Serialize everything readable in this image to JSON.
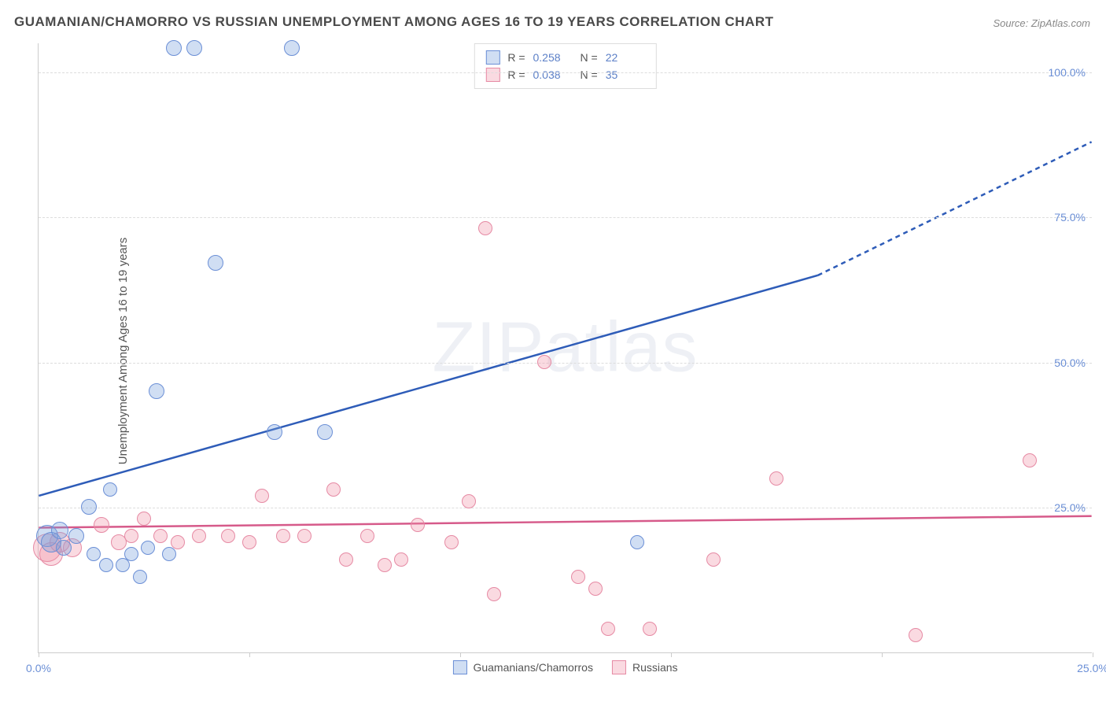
{
  "title": "GUAMANIAN/CHAMORRO VS RUSSIAN UNEMPLOYMENT AMONG AGES 16 TO 19 YEARS CORRELATION CHART",
  "source": "Source: ZipAtlas.com",
  "y_axis_label": "Unemployment Among Ages 16 to 19 years",
  "watermark": "ZIPatlas",
  "chart": {
    "type": "scatter",
    "xlim": [
      0,
      25
    ],
    "ylim": [
      0,
      105
    ],
    "x_ticks": [
      0,
      5,
      10,
      15,
      20,
      25
    ],
    "x_tick_labels": {
      "0": "0.0%",
      "25": "25.0%"
    },
    "y_ticks": [
      25,
      50,
      75,
      100
    ],
    "y_tick_labels": {
      "25": "25.0%",
      "50": "50.0%",
      "75": "75.0%",
      "100": "100.0%"
    },
    "background_color": "#ffffff",
    "grid_color": "#dddddd",
    "axis_color": "#cccccc",
    "tick_label_color": "#6b8fd6",
    "title_color": "#4a4a4a",
    "title_fontsize": 17
  },
  "series": [
    {
      "name": "Guamanians/Chamorros",
      "color_fill": "rgba(120,160,220,0.35)",
      "color_stroke": "#6b8fd6",
      "R": "0.258",
      "N": "22",
      "trend": {
        "x1": 0,
        "y1": 27,
        "x2": 18.5,
        "y2": 65,
        "x2_ext": 25,
        "y2_ext": 88,
        "color": "#2e5cb8",
        "width": 2.5
      },
      "points": [
        {
          "x": 0.2,
          "y": 20,
          "r": 14
        },
        {
          "x": 0.3,
          "y": 19,
          "r": 13
        },
        {
          "x": 0.5,
          "y": 21,
          "r": 11
        },
        {
          "x": 0.6,
          "y": 18,
          "r": 10
        },
        {
          "x": 0.9,
          "y": 20,
          "r": 10
        },
        {
          "x": 1.2,
          "y": 25,
          "r": 10
        },
        {
          "x": 1.3,
          "y": 17,
          "r": 9
        },
        {
          "x": 1.6,
          "y": 15,
          "r": 9
        },
        {
          "x": 1.7,
          "y": 28,
          "r": 9
        },
        {
          "x": 2.0,
          "y": 15,
          "r": 9
        },
        {
          "x": 2.2,
          "y": 17,
          "r": 9
        },
        {
          "x": 2.4,
          "y": 13,
          "r": 9
        },
        {
          "x": 2.6,
          "y": 18,
          "r": 9
        },
        {
          "x": 2.8,
          "y": 45,
          "r": 10
        },
        {
          "x": 3.1,
          "y": 17,
          "r": 9
        },
        {
          "x": 3.2,
          "y": 104,
          "r": 10
        },
        {
          "x": 3.7,
          "y": 104,
          "r": 10
        },
        {
          "x": 4.2,
          "y": 67,
          "r": 10
        },
        {
          "x": 5.6,
          "y": 38,
          "r": 10
        },
        {
          "x": 6.0,
          "y": 104,
          "r": 10
        },
        {
          "x": 6.8,
          "y": 38,
          "r": 10
        },
        {
          "x": 14.2,
          "y": 19,
          "r": 9
        }
      ]
    },
    {
      "name": "Russians",
      "color_fill": "rgba(240,150,170,0.35)",
      "color_stroke": "#e68aa4",
      "R": "0.038",
      "N": "35",
      "trend": {
        "x1": 0,
        "y1": 21.5,
        "x2": 25,
        "y2": 23.5,
        "color": "#d65a8a",
        "width": 2.5
      },
      "points": [
        {
          "x": 0.2,
          "y": 18,
          "r": 18
        },
        {
          "x": 0.3,
          "y": 17,
          "r": 15
        },
        {
          "x": 0.5,
          "y": 19,
          "r": 13
        },
        {
          "x": 0.8,
          "y": 18,
          "r": 12
        },
        {
          "x": 1.5,
          "y": 22,
          "r": 10
        },
        {
          "x": 1.9,
          "y": 19,
          "r": 10
        },
        {
          "x": 2.2,
          "y": 20,
          "r": 9
        },
        {
          "x": 2.5,
          "y": 23,
          "r": 9
        },
        {
          "x": 2.9,
          "y": 20,
          "r": 9
        },
        {
          "x": 3.3,
          "y": 19,
          "r": 9
        },
        {
          "x": 3.8,
          "y": 20,
          "r": 9
        },
        {
          "x": 4.5,
          "y": 20,
          "r": 9
        },
        {
          "x": 5.0,
          "y": 19,
          "r": 9
        },
        {
          "x": 5.3,
          "y": 27,
          "r": 9
        },
        {
          "x": 5.8,
          "y": 20,
          "r": 9
        },
        {
          "x": 6.3,
          "y": 20,
          "r": 9
        },
        {
          "x": 7.0,
          "y": 28,
          "r": 9
        },
        {
          "x": 7.3,
          "y": 16,
          "r": 9
        },
        {
          "x": 7.8,
          "y": 20,
          "r": 9
        },
        {
          "x": 8.2,
          "y": 15,
          "r": 9
        },
        {
          "x": 8.6,
          "y": 16,
          "r": 9
        },
        {
          "x": 9.0,
          "y": 22,
          "r": 9
        },
        {
          "x": 9.8,
          "y": 19,
          "r": 9
        },
        {
          "x": 10.2,
          "y": 26,
          "r": 9
        },
        {
          "x": 10.6,
          "y": 73,
          "r": 9
        },
        {
          "x": 10.8,
          "y": 10,
          "r": 9
        },
        {
          "x": 12.0,
          "y": 50,
          "r": 9
        },
        {
          "x": 12.8,
          "y": 13,
          "r": 9
        },
        {
          "x": 13.2,
          "y": 11,
          "r": 9
        },
        {
          "x": 13.5,
          "y": 4,
          "r": 9
        },
        {
          "x": 14.5,
          "y": 4,
          "r": 9
        },
        {
          "x": 16.0,
          "y": 16,
          "r": 9
        },
        {
          "x": 17.5,
          "y": 30,
          "r": 9
        },
        {
          "x": 20.8,
          "y": 3,
          "r": 9
        },
        {
          "x": 23.5,
          "y": 33,
          "r": 9
        }
      ]
    }
  ],
  "legend_labels": {
    "R": "R =",
    "N": "N ="
  }
}
